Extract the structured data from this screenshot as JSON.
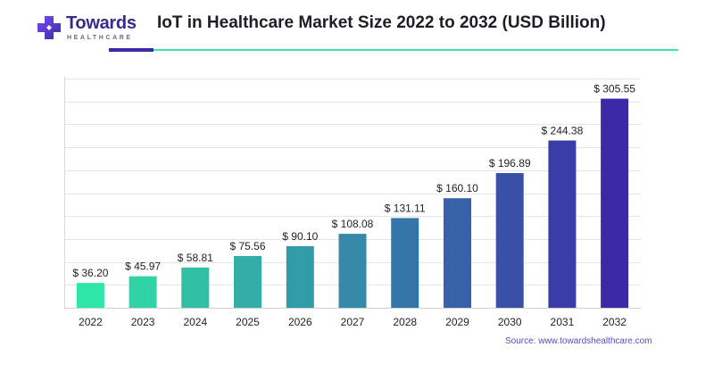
{
  "header": {
    "logo_word": "Towards",
    "logo_sub": "HEALTHCARE",
    "title": "IoT in Healthcare Market Size 2022 to 2032 (USD Billion)"
  },
  "source": "Source: www.towardshealthcare.com",
  "colors": {
    "start": "#2ee6a6",
    "end": "#3b2aa8",
    "brand": "#3a2a8c",
    "accent_line": "#3fe0b0"
  },
  "chart_data": {
    "type": "bar",
    "categories": [
      "2022",
      "2023",
      "2024",
      "2025",
      "2026",
      "2027",
      "2028",
      "2029",
      "2030",
      "2031",
      "2032"
    ],
    "values": [
      36.2,
      45.97,
      58.81,
      75.56,
      90.1,
      108.08,
      131.11,
      160.1,
      196.89,
      244.38,
      305.55
    ],
    "data_labels": [
      "$ 36.20",
      "$ 45.97",
      "$ 58.81",
      "$ 75.56",
      "$ 90.10",
      "$ 108.08",
      "$ 131.11",
      "$ 160.10",
      "$ 196.89",
      "$ 244.38",
      "$ 305.55"
    ],
    "title": "IoT in Healthcare Market Size 2022 to 2032 (USD Billion)",
    "xlabel": "",
    "ylabel": "",
    "ylim": [
      0,
      335
    ],
    "grid": true,
    "legend": "none"
  }
}
